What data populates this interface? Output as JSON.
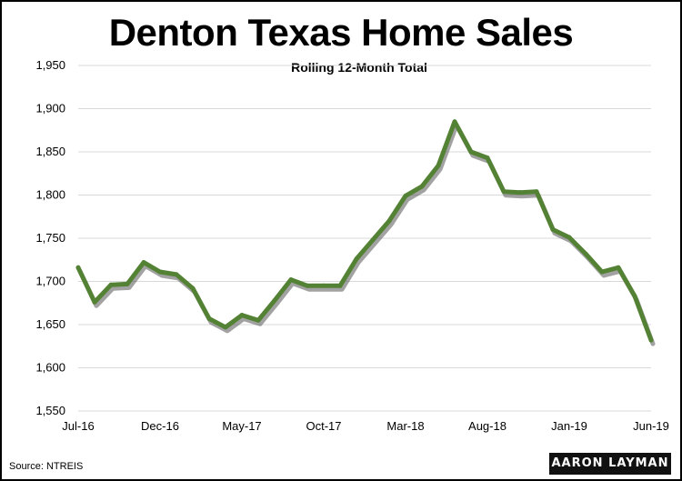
{
  "source": "Source: NTREIS",
  "logo_text": "AARON LAYMAN",
  "chart_data": {
    "type": "line",
    "title": "Denton Texas Home Sales",
    "subtitle": "Rolling 12-Month Total",
    "x": [
      "Jul-16",
      "Aug-16",
      "Sep-16",
      "Oct-16",
      "Nov-16",
      "Dec-16",
      "Jan-17",
      "Feb-17",
      "Mar-17",
      "Apr-17",
      "May-17",
      "Jun-17",
      "Jul-17",
      "Aug-17",
      "Sep-17",
      "Oct-17",
      "Nov-17",
      "Dec-17",
      "Jan-18",
      "Feb-18",
      "Mar-18",
      "Apr-18",
      "May-18",
      "Jun-18",
      "Jul-18",
      "Aug-18",
      "Sep-18",
      "Oct-18",
      "Nov-18",
      "Dec-18",
      "Jan-19",
      "Feb-19",
      "Mar-19",
      "Apr-19",
      "May-19",
      "Jun-19"
    ],
    "x_tick_labels": [
      "Jul-16",
      "Dec-16",
      "May-17",
      "Oct-17",
      "Mar-18",
      "Aug-18",
      "Jan-19",
      "Jun-19"
    ],
    "x_tick_indices": [
      0,
      5,
      10,
      15,
      20,
      25,
      30,
      35
    ],
    "series": [
      {
        "values": [
          1716,
          1676,
          1696,
          1697,
          1722,
          1711,
          1708,
          1692,
          1657,
          1647,
          1661,
          1655,
          1678,
          1702,
          1695,
          1695,
          1695,
          1726,
          1748,
          1770,
          1799,
          1810,
          1834,
          1885,
          1850,
          1843,
          1804,
          1803,
          1804,
          1760,
          1751,
          1732,
          1711,
          1716,
          1683,
          1632
        ]
      }
    ],
    "ylim": [
      1550,
      1950
    ],
    "y_ticks": [
      1550,
      1600,
      1650,
      1700,
      1750,
      1800,
      1850,
      1900,
      1950
    ],
    "y_tick_labels": [
      "1,550",
      "1,600",
      "1,650",
      "1,700",
      "1,750",
      "1,800",
      "1,850",
      "1,900",
      "1,950"
    ],
    "grid": true,
    "line_color": "#548235",
    "line_shadow_color": "#555555"
  }
}
